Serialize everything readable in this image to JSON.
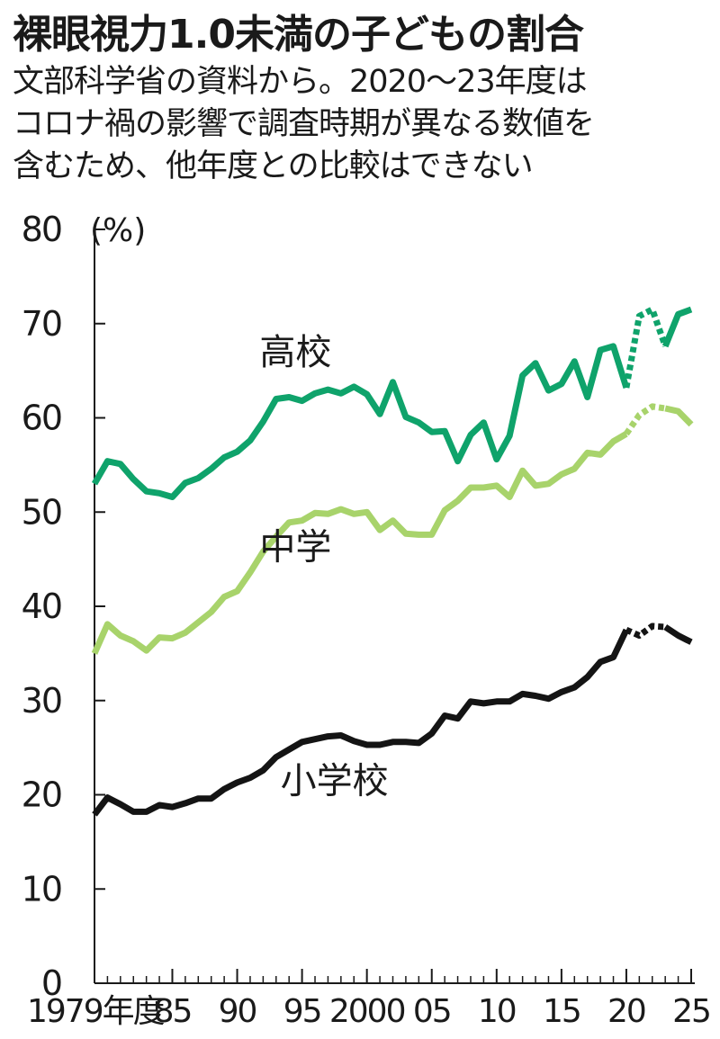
{
  "title": "裸眼視力1.0未満の子どもの割合",
  "subtitle_lines": [
    "文部科学省の資料から。2020～23年度は",
    "コロナ禍の影響で調査時期が異なる数値を",
    "含むため、他年度との比較はできない"
  ],
  "chart_data": {
    "type": "line",
    "title": "裸眼視力1.0未満の子どもの割合",
    "ylabel": "(%)",
    "xlabel": "",
    "ylim": [
      0,
      80
    ],
    "yticks": [
      0,
      10,
      20,
      30,
      40,
      50,
      60,
      70,
      80
    ],
    "xlim": [
      1979,
      2025
    ],
    "xticks": [
      {
        "year": 1979,
        "label": "1979年度"
      },
      {
        "year": 1985,
        "label": "85"
      },
      {
        "year": 1990,
        "label": "90"
      },
      {
        "year": 1995,
        "label": "95"
      },
      {
        "year": 2000,
        "label": "2000"
      },
      {
        "year": 2005,
        "label": "05"
      },
      {
        "year": 2010,
        "label": "10"
      },
      {
        "year": 2015,
        "label": "15"
      },
      {
        "year": 2020,
        "label": "20"
      },
      {
        "year": 2025,
        "label": "25"
      }
    ],
    "grid": false,
    "dashed_range": [
      2020,
      2023
    ],
    "series": [
      {
        "name": "高校",
        "color": "#0fa36b",
        "label_year": 1994.5,
        "label_value": 65.7,
        "x": [
          1979,
          1980,
          1981,
          1982,
          1983,
          1984,
          1985,
          1986,
          1987,
          1988,
          1989,
          1990,
          1991,
          1992,
          1993,
          1994,
          1995,
          1996,
          1997,
          1998,
          1999,
          2000,
          2001,
          2002,
          2003,
          2004,
          2005,
          2006,
          2007,
          2008,
          2009,
          2010,
          2011,
          2012,
          2013,
          2014,
          2015,
          2016,
          2017,
          2018,
          2019,
          2020,
          2021,
          2022,
          2023,
          2024,
          2025
        ],
        "values": [
          53,
          55.4,
          55.1,
          53.5,
          52.2,
          52,
          51.6,
          53.1,
          53.6,
          54.6,
          55.8,
          56.4,
          57.6,
          59.6,
          62,
          62.2,
          61.8,
          62.6,
          63,
          62.6,
          63.3,
          62.5,
          60.4,
          63.8,
          60.1,
          59.5,
          58.5,
          58.6,
          55.4,
          58.2,
          59.5,
          55.6,
          58.1,
          64.5,
          65.8,
          62.9,
          63.6,
          66,
          62.2,
          67.2,
          67.6,
          63.2,
          70.8,
          71.5,
          67.6,
          71,
          71.5
        ]
      },
      {
        "name": "中学",
        "color": "#a8d36b",
        "label_year": 1994.5,
        "label_value": 45.0,
        "x": [
          1979,
          1980,
          1981,
          1982,
          1983,
          1984,
          1985,
          1986,
          1987,
          1988,
          1989,
          1990,
          1991,
          1992,
          1993,
          1994,
          1995,
          1996,
          1997,
          1998,
          1999,
          2000,
          2001,
          2002,
          2003,
          2004,
          2005,
          2006,
          2007,
          2008,
          2009,
          2010,
          2011,
          2012,
          2013,
          2014,
          2015,
          2016,
          2017,
          2018,
          2019,
          2020,
          2021,
          2022,
          2023,
          2024,
          2025
        ],
        "values": [
          35,
          38.1,
          36.9,
          36.3,
          35.3,
          36.7,
          36.6,
          37.2,
          38.3,
          39.4,
          41,
          41.6,
          43.6,
          45.8,
          47.4,
          48.9,
          49.1,
          49.9,
          49.8,
          50.3,
          49.8,
          50,
          48.1,
          49.1,
          47.7,
          47.6,
          47.6,
          50.2,
          51.2,
          52.6,
          52.6,
          52.8,
          51.6,
          54.4,
          52.8,
          53,
          54,
          54.6,
          56.3,
          56.1,
          57.5,
          58.3,
          60.3,
          61.2,
          61,
          60.7,
          59.3
        ]
      },
      {
        "name": "小学校",
        "color": "#141414",
        "label_year": 1997.5,
        "label_value": 20.2,
        "x": [
          1979,
          1980,
          1981,
          1982,
          1983,
          1984,
          1985,
          1986,
          1987,
          1988,
          1989,
          1990,
          1991,
          1992,
          1993,
          1994,
          1995,
          1996,
          1997,
          1998,
          1999,
          2000,
          2001,
          2002,
          2003,
          2004,
          2005,
          2006,
          2007,
          2008,
          2009,
          2010,
          2011,
          2012,
          2013,
          2014,
          2015,
          2016,
          2017,
          2018,
          2019,
          2020,
          2021,
          2022,
          2023,
          2024,
          2025
        ],
        "values": [
          17.9,
          19.7,
          19,
          18.2,
          18.2,
          18.9,
          18.7,
          19.1,
          19.6,
          19.6,
          20.6,
          21.3,
          21.8,
          22.6,
          24,
          24.8,
          25.6,
          25.9,
          26.2,
          26.3,
          25.7,
          25.3,
          25.3,
          25.6,
          25.6,
          25.5,
          26.5,
          28.4,
          28.1,
          29.9,
          29.7,
          29.9,
          29.9,
          30.7,
          30.5,
          30.2,
          30.9,
          31.4,
          32.5,
          34.1,
          34.6,
          37.5,
          36.9,
          37.9,
          37.8,
          36.9,
          36.2
        ]
      }
    ]
  }
}
